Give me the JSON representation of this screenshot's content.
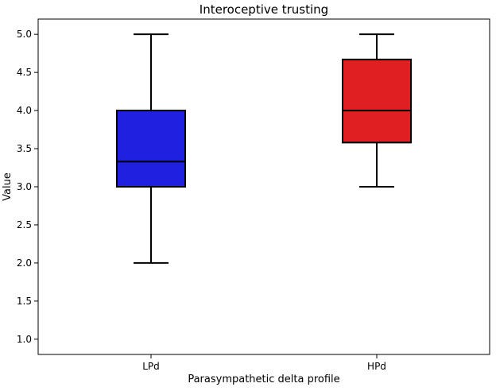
{
  "chart_data": {
    "type": "box",
    "title": "Interoceptive trusting",
    "xlabel": "Parasympathetic delta profile",
    "ylabel": "Value",
    "ylim": [
      0.8,
      5.2
    ],
    "yticks": [
      "1.0",
      "1.5",
      "2.0",
      "2.5",
      "3.0",
      "3.5",
      "4.0",
      "4.5",
      "5.0"
    ],
    "grid": false,
    "categories": [
      "LPd",
      "HPd"
    ],
    "boxes": [
      {
        "category": "LPd",
        "min": 2.0,
        "q1": 3.0,
        "median": 3.33,
        "q3": 4.0,
        "max": 5.0,
        "color": "#2020e0"
      },
      {
        "category": "HPd",
        "min": 3.0,
        "q1": 3.58,
        "median": 4.0,
        "q3": 4.67,
        "max": 5.0,
        "color": "#e02020"
      }
    ]
  }
}
